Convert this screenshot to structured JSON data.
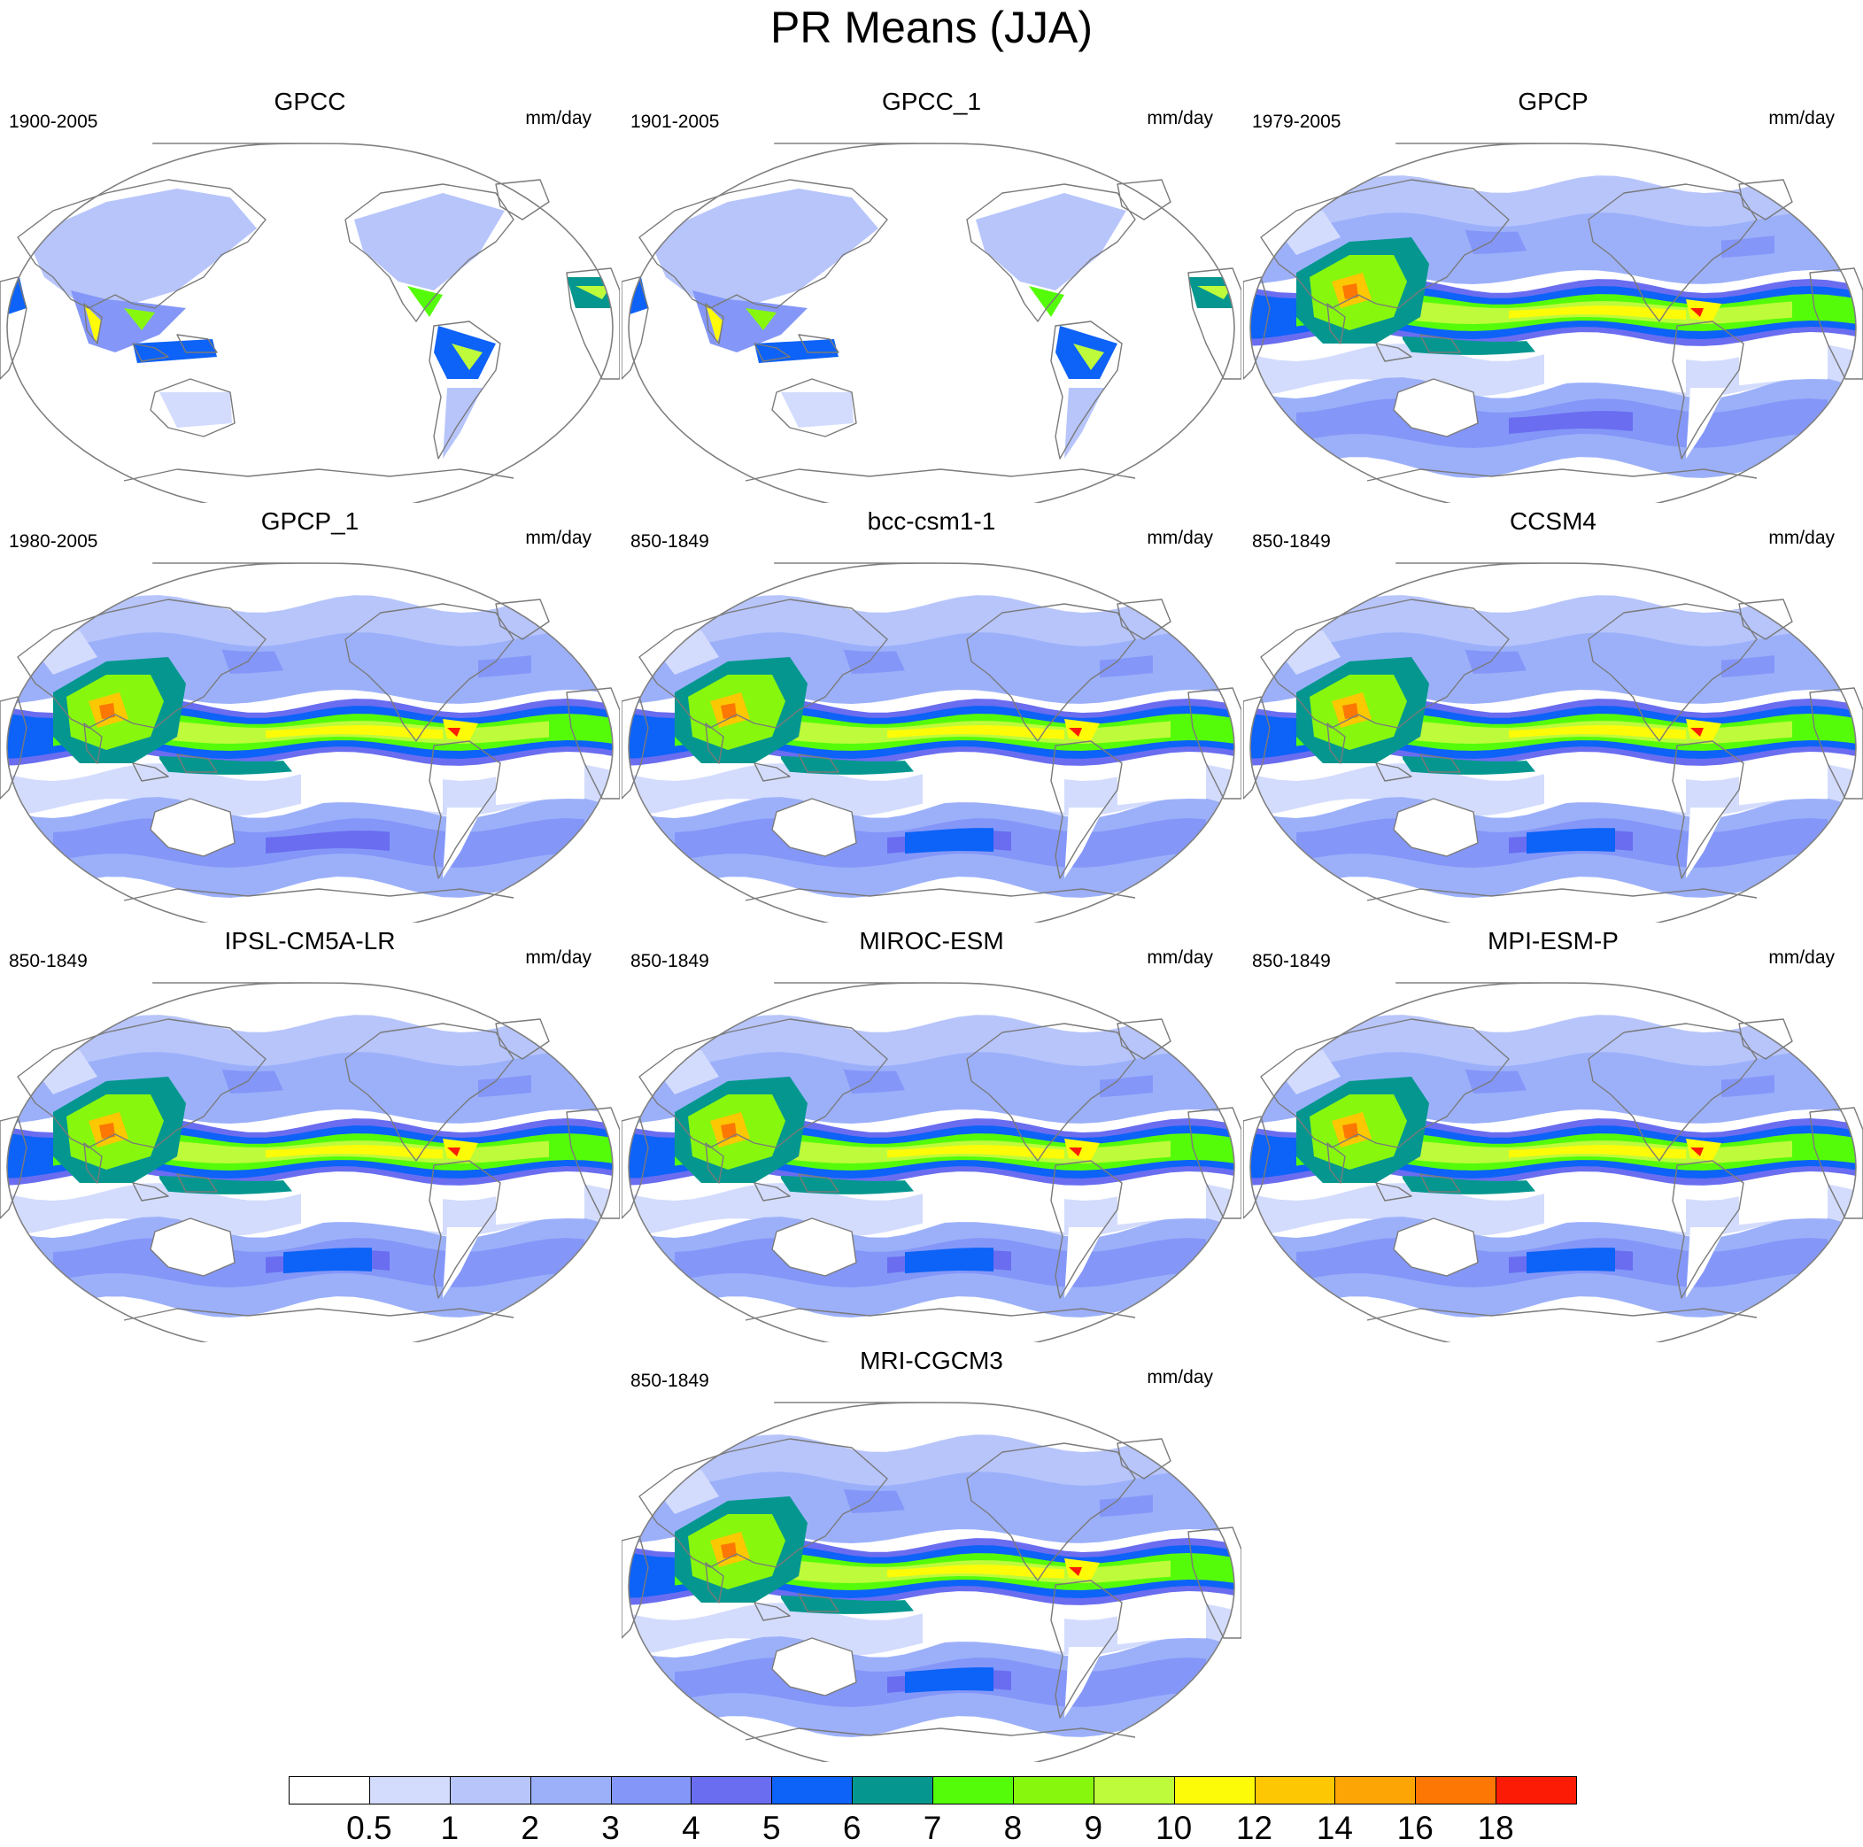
{
  "title": "PR Means (JJA)",
  "colors": {
    "levels": [
      "#ffffff",
      "#d3dcfd",
      "#b7c5fb",
      "#9cb0fa",
      "#8497f8",
      "#6a6df0",
      "#0d62f7",
      "#05978f",
      "#55fc0a",
      "#88f70e",
      "#bdfb3b",
      "#fdfb08",
      "#fdc703",
      "#fda504",
      "#fc7703",
      "#fc1c06"
    ],
    "land_line": "#7a7a7a",
    "frame": "#808080"
  },
  "colorbar": {
    "labels": [
      "0.5",
      "1",
      "2",
      "3",
      "4",
      "5",
      "6",
      "7",
      "8",
      "9",
      "10",
      "12",
      "14",
      "16",
      "18"
    ]
  },
  "panels": [
    {
      "name": "GPCC",
      "period": "1900-2005",
      "units": "mm/day",
      "kind": "land"
    },
    {
      "name": "GPCC_1",
      "period": "1901-2005",
      "units": "mm/day",
      "kind": "land"
    },
    {
      "name": "GPCP",
      "period": "1979-2005",
      "units": "mm/day",
      "kind": "obs"
    },
    {
      "name": "GPCP_1",
      "period": "1980-2005",
      "units": "mm/day",
      "kind": "obs"
    },
    {
      "name": "bcc-csm1-1",
      "period": "850-1849",
      "units": "mm/day",
      "kind": "model"
    },
    {
      "name": "CCSM4",
      "period": "850-1849",
      "units": "mm/day",
      "kind": "model"
    },
    {
      "name": "IPSL-CM5A-LR",
      "period": "850-1849",
      "units": "mm/day",
      "kind": "model"
    },
    {
      "name": "MIROC-ESM",
      "period": "850-1849",
      "units": "mm/day",
      "kind": "model"
    },
    {
      "name": "MPI-ESM-P",
      "period": "850-1849",
      "units": "mm/day",
      "kind": "model"
    },
    {
      "name": "MRI-CGCM3",
      "period": "850-1849",
      "units": "mm/day",
      "kind": "model"
    }
  ]
}
